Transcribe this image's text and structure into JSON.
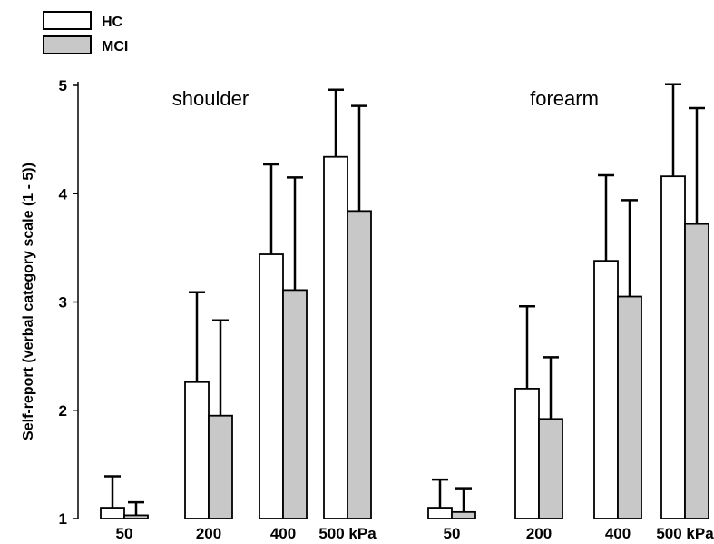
{
  "chart_data": {
    "type": "bar",
    "ylabel": "Self-report (verbal category scale (1 - 5))",
    "ylim": [
      1,
      5
    ],
    "yticks": [
      "1",
      "2",
      "3",
      "4",
      "5"
    ],
    "legend": {
      "placement": "top-left",
      "entries": [
        "HC",
        "MCI"
      ]
    },
    "colors": {
      "HC": "#ffffff",
      "MCI": "#c8c8c8",
      "stroke": "#000000"
    },
    "panels": [
      {
        "title": "shoulder",
        "categories": [
          "50",
          "200",
          "400",
          "500 kPa"
        ],
        "series": [
          {
            "name": "HC",
            "values": [
              1.1,
              2.26,
              3.44,
              4.34
            ],
            "error": [
              0.29,
              0.83,
              0.83,
              0.62
            ]
          },
          {
            "name": "MCI",
            "values": [
              1.03,
              1.95,
              3.11,
              3.84
            ],
            "error": [
              0.12,
              0.88,
              1.04,
              0.97
            ]
          }
        ]
      },
      {
        "title": "forearm",
        "categories": [
          "50",
          "200",
          "400",
          "500 kPa"
        ],
        "series": [
          {
            "name": "HC",
            "values": [
              1.1,
              2.2,
              3.38,
              4.16
            ],
            "error": [
              0.26,
              0.76,
              0.79,
              0.85
            ]
          },
          {
            "name": "MCI",
            "values": [
              1.06,
              1.92,
              3.05,
              3.72
            ],
            "error": [
              0.22,
              0.57,
              0.89,
              1.07
            ]
          }
        ]
      }
    ]
  }
}
